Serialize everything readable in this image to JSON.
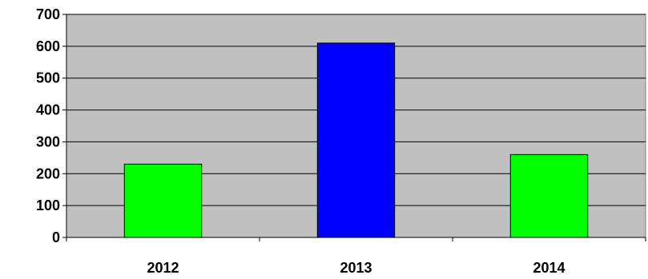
{
  "chart_data": {
    "type": "bar",
    "title": "",
    "xlabel": "",
    "ylabel": "",
    "categories": [
      "2012",
      "2013",
      "2014"
    ],
    "values": [
      230,
      610,
      260
    ],
    "bar_colors": [
      "#00ff00",
      "#0000ff",
      "#00ff00"
    ],
    "ylim": [
      0,
      700
    ],
    "yticks": [
      0,
      100,
      200,
      300,
      400,
      500,
      600,
      700
    ],
    "ytick_labels": [
      "0",
      "100",
      "200",
      "300",
      "400",
      "500",
      "600",
      "700"
    ],
    "plot_background": "#c0c0c0",
    "grid": true,
    "legend": "none"
  }
}
